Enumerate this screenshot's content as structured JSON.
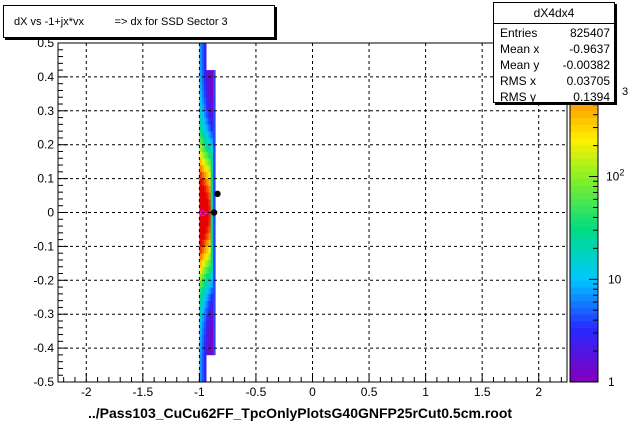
{
  "title": "dX vs -1+jx*vx          => dx for SSD Sector 3",
  "xlabel": "../Pass103_CuCu62FF_TpcOnlyPlotsG40GNFP25rCut0.5cm.root",
  "stats": {
    "name": "dX4dx4",
    "rows": [
      {
        "label": "Entries",
        "value": "825407"
      },
      {
        "label": "Mean x",
        "value": "-0.9637"
      },
      {
        "label": "Mean y",
        "value": "-0.00382"
      },
      {
        "label": "RMS x",
        "value": "0.03705"
      },
      {
        "label": "RMS y",
        "value": "0.1394"
      }
    ]
  },
  "palette_partial_label": "3",
  "colors": {
    "frame": "#000000",
    "grid": "#000000",
    "profile_marker": "#000000",
    "magenta_marker": "#ff00ff"
  },
  "chart_data": {
    "type": "heatmap",
    "title": "dX vs -1+jx*vx          => dx for SSD Sector 3",
    "xlabel": "../Pass103_CuCu62FF_TpcOnlyPlotsG40GNFP25rCut0.5cm.root",
    "ylabel": "",
    "xlim": [
      -2.25,
      2.25
    ],
    "ylim": [
      -0.5,
      0.5
    ],
    "x_ticks": [
      "-2",
      "-1.5",
      "-1",
      "-0.5",
      "0",
      "0.5",
      "1",
      "1.5",
      "2"
    ],
    "y_ticks": [
      "-0.5",
      "-0.4",
      "-0.3",
      "-0.2",
      "-0.1",
      "0",
      "0.1",
      "0.2",
      "0.3",
      "0.4",
      "0.5"
    ],
    "z_scale": "log",
    "z_ticks": [
      "1",
      "10",
      "10^2"
    ],
    "grid": true,
    "band_x": [
      -1.0,
      -0.86
    ],
    "profile_points": [
      {
        "x": -0.87,
        "y": 0.0
      },
      {
        "x": -0.84,
        "y": 0.055
      }
    ]
  }
}
